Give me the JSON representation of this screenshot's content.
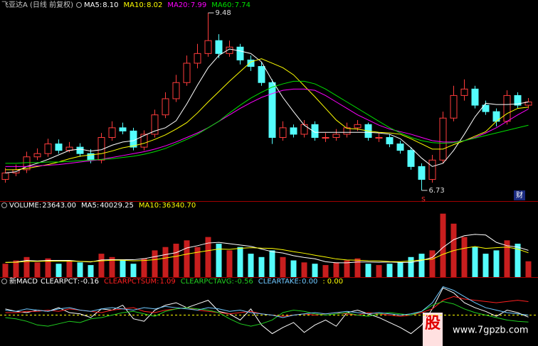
{
  "chart_data": [
    {
      "type": "candlestick",
      "title": "飞亚达A (日线 前复权)",
      "legend_sep": ":",
      "up_color": "#ff3c3c",
      "down_color": "#54fcfc",
      "ylim": [
        6.565,
        9.525
      ],
      "open": [
        6.9,
        7.0,
        7.05,
        7.25,
        7.3,
        7.45,
        7.35,
        7.4,
        7.3,
        7.2,
        7.55,
        7.7,
        7.65,
        7.4,
        7.6,
        7.9,
        8.15,
        8.4,
        8.7,
        8.85,
        9.05,
        8.85,
        8.95,
        8.75,
        8.65,
        8.4,
        7.55,
        7.7,
        7.6,
        7.75,
        7.55,
        7.55,
        7.6,
        7.7,
        7.75,
        7.55,
        7.55,
        7.45,
        7.35,
        7.1,
        6.9,
        7.2,
        7.85,
        8.2,
        8.3,
        8.05,
        7.95,
        7.8,
        8.2,
        8.05
      ],
      "high": [
        7.08,
        7.13,
        7.33,
        7.38,
        7.53,
        7.52,
        7.48,
        7.46,
        7.37,
        7.62,
        7.8,
        7.78,
        7.7,
        7.66,
        7.98,
        8.25,
        8.52,
        8.82,
        9.0,
        9.48,
        9.15,
        9.05,
        9.0,
        8.82,
        8.72,
        8.45,
        7.8,
        7.75,
        7.82,
        7.8,
        7.62,
        7.68,
        7.78,
        7.82,
        7.78,
        7.62,
        7.6,
        7.5,
        7.4,
        7.15,
        7.28,
        7.95,
        8.35,
        8.45,
        8.35,
        8.12,
        8.0,
        8.28,
        8.25,
        8.16
      ],
      "low": [
        6.85,
        6.95,
        7.0,
        7.2,
        7.25,
        7.3,
        7.32,
        7.25,
        7.15,
        7.15,
        7.5,
        7.6,
        7.35,
        7.35,
        7.55,
        7.85,
        8.1,
        8.35,
        8.62,
        8.8,
        8.78,
        8.8,
        8.68,
        8.58,
        8.35,
        7.45,
        7.5,
        7.55,
        7.55,
        7.5,
        7.48,
        7.5,
        7.55,
        7.65,
        7.5,
        7.48,
        7.4,
        7.3,
        7.05,
        6.73,
        6.85,
        7.15,
        7.8,
        8.12,
        8.0,
        7.9,
        7.72,
        7.75,
        8.0,
        8.0
      ],
      "close": [
        7.0,
        7.05,
        7.25,
        7.3,
        7.45,
        7.35,
        7.4,
        7.3,
        7.2,
        7.55,
        7.7,
        7.65,
        7.4,
        7.6,
        7.9,
        8.15,
        8.4,
        8.7,
        8.85,
        9.05,
        8.85,
        8.95,
        8.75,
        8.65,
        8.4,
        7.55,
        7.7,
        7.6,
        7.75,
        7.55,
        7.55,
        7.6,
        7.7,
        7.75,
        7.55,
        7.55,
        7.45,
        7.35,
        7.1,
        6.9,
        7.2,
        7.85,
        8.2,
        8.3,
        8.05,
        7.95,
        7.8,
        8.2,
        8.05,
        8.1
      ],
      "series": [
        {
          "name": "MA5",
          "color": "#ffffff",
          "legend_value": {
            "value": 8.1,
            "label": "8.10"
          },
          "values": [
            7.0,
            7.02,
            7.1,
            7.15,
            7.21,
            7.28,
            7.35,
            7.37,
            7.34,
            7.36,
            7.43,
            7.48,
            7.5,
            7.58,
            7.65,
            7.7,
            7.81,
            8.07,
            8.36,
            8.63,
            8.82,
            8.92,
            8.89,
            8.85,
            8.72,
            8.43,
            8.17,
            7.95,
            7.74,
            7.63,
            7.63,
            7.63,
            7.63,
            7.63,
            7.63,
            7.62,
            7.6,
            7.53,
            7.39,
            7.23,
            7.1,
            7.15,
            7.35,
            7.6,
            7.87,
            8.08,
            8.06,
            8.06,
            8.07,
            8.1
          ]
        },
        {
          "name": "MA10",
          "color": "#ffff00",
          "legend_value": {
            "value": 8.02,
            "label": "8.02"
          },
          "values": [
            7.05,
            7.05,
            7.07,
            7.1,
            7.13,
            7.17,
            7.22,
            7.26,
            7.28,
            7.3,
            7.34,
            7.39,
            7.42,
            7.46,
            7.52,
            7.59,
            7.68,
            7.78,
            7.93,
            8.1,
            8.26,
            8.42,
            8.57,
            8.72,
            8.77,
            8.7,
            8.63,
            8.52,
            8.35,
            8.18,
            8.0,
            7.82,
            7.69,
            7.68,
            7.65,
            7.63,
            7.62,
            7.6,
            7.53,
            7.45,
            7.37,
            7.37,
            7.44,
            7.5,
            7.57,
            7.64,
            7.8,
            7.92,
            8.0,
            8.02
          ]
        },
        {
          "name": "MA20",
          "color": "#ff00ff",
          "legend_value": {
            "value": 7.99,
            "label": "7.99"
          },
          "values": [
            7.1,
            7.1,
            7.1,
            7.11,
            7.12,
            7.13,
            7.15,
            7.17,
            7.19,
            7.21,
            7.24,
            7.27,
            7.3,
            7.33,
            7.37,
            7.42,
            7.48,
            7.55,
            7.62,
            7.7,
            7.8,
            7.9,
            8.0,
            8.09,
            8.17,
            8.23,
            8.28,
            8.3,
            8.3,
            8.28,
            8.2,
            8.1,
            8.0,
            7.9,
            7.82,
            7.74,
            7.68,
            7.64,
            7.6,
            7.55,
            7.5,
            7.48,
            7.48,
            7.5,
            7.55,
            7.62,
            7.7,
            7.8,
            7.9,
            7.99
          ]
        },
        {
          "name": "MA60",
          "color": "#00e000",
          "legend_value": {
            "value": 7.74,
            "label": "7.74"
          },
          "values": [
            7.15,
            7.15,
            7.16,
            7.16,
            7.17,
            7.17,
            7.18,
            7.19,
            7.2,
            7.21,
            7.22,
            7.24,
            7.26,
            7.29,
            7.33,
            7.38,
            7.45,
            7.52,
            7.6,
            7.7,
            7.8,
            7.93,
            8.05,
            8.16,
            8.25,
            8.33,
            8.38,
            8.42,
            8.42,
            8.38,
            8.3,
            8.2,
            8.1,
            8.0,
            7.9,
            7.8,
            7.7,
            7.62,
            7.55,
            7.5,
            7.47,
            7.46,
            7.47,
            7.5,
            7.54,
            7.58,
            7.62,
            7.66,
            7.7,
            7.74
          ]
        }
      ]
    },
    {
      "type": "bar",
      "title": "VOLUME",
      "legend_sep": ":",
      "title_value": {
        "value": 23643,
        "label": "23643.00"
      },
      "up_color": "#c81e1e",
      "down_color": "#54fcfc",
      "ylim": [
        0,
        100000
      ],
      "values": [
        20000,
        25000,
        30000,
        22000,
        28000,
        20000,
        25000,
        22000,
        18000,
        35000,
        30000,
        25000,
        20000,
        28000,
        40000,
        45000,
        50000,
        55000,
        45000,
        60000,
        50000,
        40000,
        45000,
        35000,
        30000,
        40000,
        30000,
        25000,
        22000,
        20000,
        18000,
        22000,
        25000,
        28000,
        20000,
        18000,
        20000,
        22000,
        30000,
        35000,
        40000,
        95000,
        80000,
        60000,
        45000,
        35000,
        40000,
        55000,
        50000,
        23643
      ],
      "series": [
        {
          "name": "MA5",
          "color": "#ffffff",
          "legend_value": {
            "value": 40029.25,
            "label": "40029.25"
          },
          "values": [
            22000,
            22500,
            25000,
            24250,
            25000,
            25000,
            25000,
            23400,
            22600,
            25600,
            26000,
            26000,
            26000,
            27600,
            30600,
            33600,
            36600,
            43600,
            47000,
            51000,
            52000,
            50000,
            48000,
            46000,
            42000,
            38000,
            36000,
            32000,
            29400,
            27400,
            23000,
            21400,
            21400,
            22600,
            22600,
            22200,
            22600,
            22000,
            22000,
            25000,
            29400,
            44400,
            56000,
            62000,
            64000,
            63000,
            52000,
            47000,
            45000,
            40029.25
          ]
        },
        {
          "name": "MA10",
          "color": "#ffff00",
          "legend_value": {
            "value": 36340.7,
            "label": "36340.70"
          },
          "values": [
            22000,
            22250,
            23500,
            23500,
            24000,
            23800,
            24000,
            23600,
            23200,
            24300,
            25300,
            25300,
            24300,
            24900,
            26100,
            28600,
            31100,
            34400,
            37100,
            39600,
            42000,
            41500,
            43100,
            44000,
            43300,
            43000,
            41000,
            38000,
            35700,
            32700,
            30000,
            27200,
            25700,
            25200,
            24500,
            24200,
            23300,
            23100,
            24200,
            25700,
            26900,
            34200,
            39700,
            43200,
            45700,
            43000,
            44000,
            45000,
            42000,
            36340.7
          ]
        }
      ]
    },
    {
      "type": "line",
      "title": "新MACD",
      "legend_sep": ":",
      "ylim": [
        -2.5,
        2.5
      ],
      "series": [
        {
          "name": "CLEARPCT",
          "color": "#ffffff",
          "legend_value": {
            "value": -0.16,
            "label": "-0.16"
          },
          "values": [
            0.5,
            0.3,
            0.2,
            0.4,
            0.3,
            0.6,
            0.2,
            0.1,
            -0.2,
            0.5,
            0.4,
            0.8,
            -0.3,
            -0.5,
            0.4,
            0.8,
            1.0,
            0.6,
            0.9,
            1.2,
            0.3,
            0.1,
            -0.4,
            0.5,
            -0.8,
            -1.5,
            -1.0,
            -0.6,
            -1.4,
            -0.8,
            -0.4,
            -0.9,
            0.2,
            0.4,
            0.1,
            -0.2,
            -0.6,
            -1.0,
            -1.5,
            -0.8,
            0.5,
            2.2,
            1.8,
            1.0,
            0.6,
            0.3,
            -0.1,
            0.4,
            0.2,
            -0.16
          ]
        },
        {
          "name": "CLEARPCTSUM",
          "color": "#ff2020",
          "legend_value": {
            "value": 1.09,
            "label": "1.09"
          },
          "values": [
            0.2,
            0.2,
            0.3,
            0.3,
            0.4,
            0.3,
            0.5,
            0.4,
            0.3,
            0.2,
            0.4,
            0.5,
            0.6,
            0.3,
            0.2,
            0.4,
            0.5,
            0.6,
            0.4,
            0.3,
            0.2,
            0.1,
            0.2,
            0.3,
            0.1,
            0.0,
            -0.1,
            0.0,
            0.1,
            0.0,
            0.1,
            0.2,
            0.1,
            0.0,
            0.2,
            0.1,
            0.0,
            -0.1,
            0.0,
            0.2,
            0.5,
            1.2,
            1.5,
            1.3,
            1.2,
            1.1,
            1.0,
            1.1,
            1.2,
            1.09
          ]
        },
        {
          "name": "CLEARPCTAVG",
          "color": "#20d020",
          "legend_value": {
            "value": -0.56,
            "label": "-0.56"
          },
          "values": [
            -0.2,
            -0.3,
            -0.5,
            -0.8,
            -0.9,
            -0.7,
            -0.5,
            -0.6,
            -0.3,
            -0.2,
            0.0,
            0.2,
            0.3,
            0.1,
            -0.1,
            0.3,
            0.5,
            0.6,
            0.5,
            0.4,
            0.2,
            -0.3,
            -0.7,
            -0.9,
            -0.7,
            -0.4,
            0.2,
            0.4,
            0.3,
            0.1,
            0.0,
            0.1,
            0.2,
            0.0,
            -0.1,
            0.1,
            0.2,
            0.1,
            0.0,
            0.3,
            0.8,
            1.1,
            0.9,
            0.5,
            0.2,
            0.0,
            -0.2,
            -0.4,
            -0.5,
            -0.56
          ]
        },
        {
          "name": "CLEARTAKE",
          "color": "#6fc8ff",
          "legend_value": {
            "value": 0,
            "label": "0.00"
          },
          "values": [
            0.4,
            0.3,
            0.5,
            0.4,
            0.3,
            0.5,
            0.6,
            0.4,
            0.3,
            0.5,
            0.6,
            0.5,
            0.4,
            0.6,
            0.5,
            0.7,
            0.6,
            0.5,
            0.4,
            0.6,
            0.5,
            0.3,
            0.4,
            0.2,
            0.1,
            0.0,
            -0.2,
            0.0,
            0.1,
            0.2,
            0.1,
            0.2,
            0.3,
            0.2,
            0.1,
            0.2,
            0.1,
            0.0,
            0.1,
            0.3,
            1.0,
            2.3,
            2.0,
            1.5,
            1.0,
            0.6,
            0.4,
            0.2,
            0.1,
            0.0
          ]
        }
      ],
      "hline": {
        "value": 0,
        "label": "0.00",
        "color": "#ffff00"
      }
    }
  ],
  "markers": {
    "finance": "财",
    "signal": "S"
  },
  "watermark": {
    "logo": "股",
    "url": "www.7gpzb.com"
  }
}
